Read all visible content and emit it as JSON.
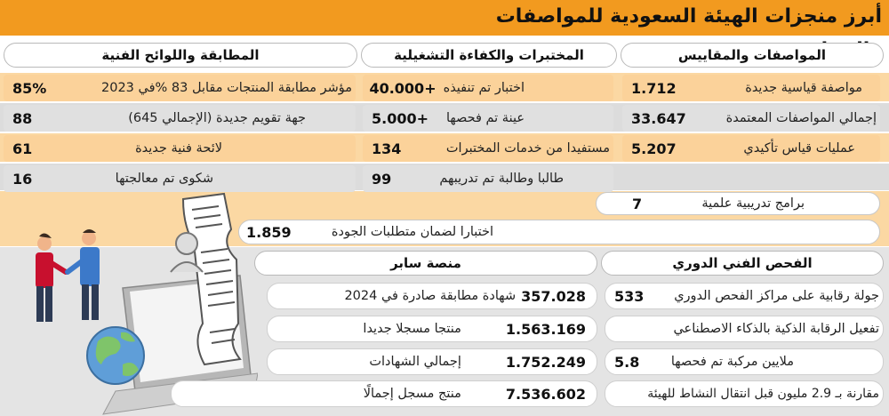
{
  "title": "أبرز منجزات الهيئة السعودية للمواصفات والمقاييس:",
  "columns": {
    "standards": "المواصفات والمقاييس",
    "labs": "المختبرات والكفاءة التشغيلية",
    "conformity": "المطابقة واللوائح الفنية"
  },
  "standards": [
    {
      "num": "1.712",
      "label": "مواصفة قياسية جديدة"
    },
    {
      "num": "33.647",
      "label": "إجمالي المواصفات المعتمدة"
    },
    {
      "num": "5.207",
      "label": "عمليات قياس تأكيدي"
    }
  ],
  "labs": [
    {
      "num": "+40.000",
      "label": "اختبار تم تنفيذه"
    },
    {
      "num": "+5.000",
      "label": "عينة تم فحصها"
    },
    {
      "num": "134",
      "label": "مستفيدا من خدمات المختبرات"
    },
    {
      "num": "99",
      "label": "طالبا وطالبة تم تدريبهم"
    },
    {
      "num": "7",
      "label": "برامج تدريبية علمية"
    },
    {
      "num": "1.859",
      "label": "اختبارا لضمان متطلبات الجودة"
    }
  ],
  "conformity": [
    {
      "num": "85%",
      "label": "مؤشر مطابقة المنتجات مقابل 83 %في 2023"
    },
    {
      "num": "88",
      "label": "جهة تقويم جديدة (الإجمالي 645)"
    },
    {
      "num": "61",
      "label": "لائحة فنية جديدة"
    },
    {
      "num": "16",
      "label": "شكوى تم معالجتها"
    }
  ],
  "periodic": {
    "header": "الفحص الفني الدوري",
    "rows": [
      {
        "num": "533",
        "label": "جولة رقابية على مراكز الفحص الدوري"
      },
      {
        "num": "",
        "label": "تفعيل الرقابة الذكية بالذكاء الاصطناعي"
      },
      {
        "num": "5.8",
        "label": "ملايين مركبة تم فحصها"
      },
      {
        "num": "",
        "label": "مقارنة بـ 2.9 مليون قبل انتقال النشاط للهيئة"
      }
    ]
  },
  "saber": {
    "header": "منصة سابر",
    "rows": [
      {
        "num": "357.028",
        "label": "شهادة مطابقة صادرة في 2024"
      },
      {
        "num": "1.563.169",
        "label": "منتجا مسجلا جديدا"
      },
      {
        "num": "1.752.249",
        "label": "إجمالي الشهادات"
      },
      {
        "num": "7.536.602",
        "label": "منتج مسجل إجمالًا"
      }
    ]
  },
  "colors": {
    "orange": "#f29a1f",
    "lightOrange": "#fbd29a",
    "gray": "#e0e0e0",
    "red": "#c8102e"
  },
  "icons": [
    "two-people-handshake-icon",
    "laptop-document-icon",
    "globe-icon"
  ]
}
